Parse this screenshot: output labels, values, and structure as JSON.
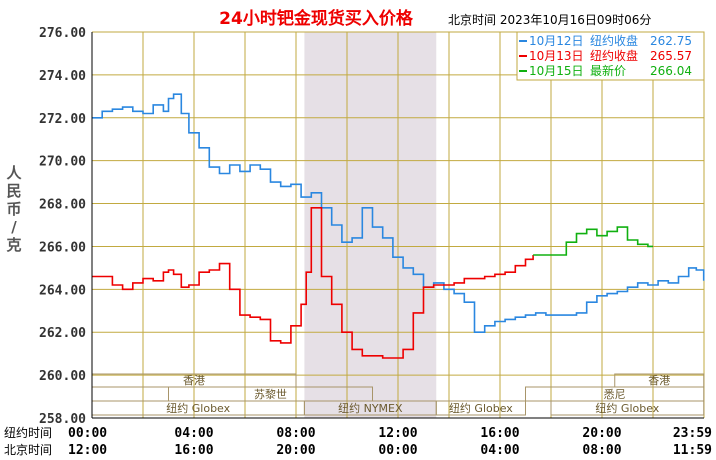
{
  "chart_data": {
    "type": "line",
    "title": "24小时钯金现货买入价格",
    "timestamp": "北京时间  2023年10月16日09时06分",
    "ylabel": "人民币/克",
    "ylim": [
      258,
      276
    ],
    "yticks": [
      "276.00",
      "274.00",
      "272.00",
      "270.00",
      "268.00",
      "266.00",
      "264.00",
      "262.00",
      "260.00",
      "258.00"
    ],
    "xrange": [
      0,
      24
    ],
    "grid": true,
    "legend_position": "top-right",
    "row_labels": {
      "ny": "纽约时间",
      "bj": "北京时间"
    },
    "ny_ticks": [
      "00:00",
      "04:00",
      "08:00",
      "12:00",
      "16:00",
      "20:00",
      "23:59"
    ],
    "bj_ticks": [
      "12:00",
      "16:00",
      "20:00",
      "00:00",
      "04:00",
      "08:00",
      "11:59"
    ],
    "legend": [
      {
        "date": "10月12日",
        "label": "纽约收盘",
        "value": "262.75",
        "color": "#2a87e0"
      },
      {
        "date": "10月13日",
        "label": "纽约收盘",
        "value": "265.57",
        "color": "#ee0000"
      },
      {
        "date": "10月15日",
        "label": "最新价",
        "value": "266.04",
        "color": "#10b010"
      }
    ],
    "sessions": {
      "top_labels": [
        "香港",
        "苏黎世",
        "香港"
      ],
      "mid_labels": [
        "悉尼"
      ],
      "bottom_labels": [
        "纽约 Globex",
        "纽约 NYMEX",
        "纽约 Globex",
        "纽约 Globex"
      ]
    },
    "series": [
      {
        "name": "10月12日",
        "color": "#2a87e0",
        "x": [
          0,
          0.4,
          0.8,
          1.2,
          1.6,
          2.0,
          2.4,
          2.8,
          3.0,
          3.2,
          3.5,
          3.8,
          4.2,
          4.6,
          5.0,
          5.4,
          5.8,
          6.2,
          6.6,
          7.0,
          7.4,
          7.8,
          8.2,
          8.6,
          9.0,
          9.4,
          9.8,
          10.2,
          10.6,
          11.0,
          11.4,
          11.8,
          12.2,
          12.6,
          13.0,
          13.4,
          13.8,
          14.2,
          14.6,
          15.0,
          15.4,
          15.8,
          16.2,
          16.6,
          17.0,
          17.4,
          17.8,
          18.2,
          18.6,
          19.0,
          19.4,
          19.8,
          20.2,
          20.6,
          21.0,
          21.4,
          21.8,
          22.2,
          22.6,
          23.0,
          23.4,
          23.7,
          23.99
        ],
        "values": [
          272.0,
          272.3,
          272.4,
          272.5,
          272.3,
          272.2,
          272.6,
          272.3,
          272.9,
          273.1,
          272.2,
          271.3,
          270.6,
          269.7,
          269.4,
          269.8,
          269.5,
          269.8,
          269.6,
          269.0,
          268.8,
          268.9,
          268.3,
          268.5,
          267.8,
          267.0,
          266.2,
          266.4,
          267.8,
          266.9,
          266.4,
          265.5,
          265.0,
          264.7,
          264.1,
          264.3,
          264.0,
          263.8,
          263.4,
          262.0,
          262.3,
          262.5,
          262.6,
          262.7,
          262.8,
          262.9,
          262.8,
          262.8,
          262.8,
          262.9,
          263.4,
          263.7,
          263.8,
          263.9,
          264.1,
          264.3,
          264.2,
          264.4,
          264.3,
          264.6,
          265.0,
          264.9,
          264.4
        ]
      },
      {
        "name": "10月13日",
        "color": "#ee0000",
        "x": [
          0,
          0.4,
          0.8,
          1.2,
          1.6,
          2.0,
          2.4,
          2.8,
          3.0,
          3.2,
          3.5,
          3.8,
          4.2,
          4.6,
          5.0,
          5.4,
          5.8,
          6.2,
          6.6,
          7.0,
          7.4,
          7.8,
          8.2,
          8.4,
          8.6,
          9.0,
          9.4,
          9.8,
          10.2,
          10.6,
          11.0,
          11.4,
          11.8,
          12.2,
          12.6,
          13.0,
          13.4,
          13.8,
          14.2,
          14.6,
          15.0,
          15.4,
          15.8,
          16.2,
          16.6,
          17.0,
          17.3
        ],
        "values": [
          264.6,
          264.6,
          264.2,
          264.0,
          264.3,
          264.5,
          264.4,
          264.8,
          264.9,
          264.7,
          264.1,
          264.2,
          264.8,
          264.9,
          265.2,
          264.0,
          262.8,
          262.7,
          262.6,
          261.6,
          261.5,
          262.3,
          263.3,
          264.8,
          267.8,
          264.6,
          263.3,
          262.0,
          261.2,
          260.9,
          260.9,
          260.8,
          260.8,
          261.2,
          262.9,
          264.1,
          264.2,
          264.2,
          264.3,
          264.5,
          264.5,
          264.6,
          264.7,
          264.8,
          265.1,
          265.4,
          265.6
        ]
      },
      {
        "name": "10月15日",
        "color": "#10b010",
        "x": [
          17.3,
          18.0,
          18.4,
          18.6,
          19.0,
          19.4,
          19.8,
          20.2,
          20.6,
          21.0,
          21.4,
          21.8,
          22.0
        ],
        "values": [
          265.6,
          265.6,
          265.6,
          266.2,
          266.6,
          266.8,
          266.5,
          266.7,
          266.9,
          266.3,
          266.1,
          266.0,
          266.0
        ]
      }
    ]
  }
}
